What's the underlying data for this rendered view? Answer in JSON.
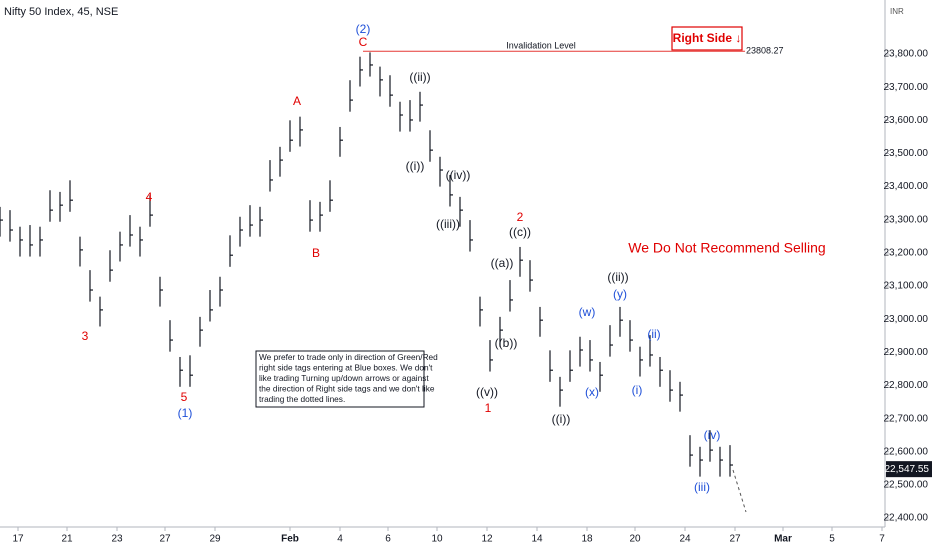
{
  "chart_data": {
    "type": "ohlc",
    "title": "Nifty 50 Index, 45, NSE",
    "currency": "INR",
    "color": "#131722",
    "xlim": [
      0,
      177
    ],
    "xticks": [
      {
        "value": 3.6,
        "label": "17"
      },
      {
        "value": 13.4,
        "label": "21"
      },
      {
        "value": 23.4,
        "label": "23"
      },
      {
        "value": 33,
        "label": "27"
      },
      {
        "value": 43,
        "label": "29"
      },
      {
        "value": 58,
        "label": "Feb"
      },
      {
        "value": 68,
        "label": "4"
      },
      {
        "value": 77.6,
        "label": "6"
      },
      {
        "value": 87.4,
        "label": "10"
      },
      {
        "value": 97.4,
        "label": "12"
      },
      {
        "value": 107.4,
        "label": "14"
      },
      {
        "value": 117.4,
        "label": "18"
      },
      {
        "value": 127,
        "label": "20"
      },
      {
        "value": 137,
        "label": "24"
      },
      {
        "value": 147,
        "label": "27"
      },
      {
        "value": 156.6,
        "label": "Mar"
      },
      {
        "value": 166.4,
        "label": "5"
      },
      {
        "value": 176.4,
        "label": "7"
      }
    ],
    "ylim": [
      22373,
      23963
    ],
    "yticks": [
      {
        "value": 22400,
        "label": "22,400.00"
      },
      {
        "value": 22500,
        "label": "22,500.00"
      },
      {
        "value": 22600,
        "label": "22,600.00"
      },
      {
        "value": 22700,
        "label": "22,700.00"
      },
      {
        "value": 22800,
        "label": "22,800.00"
      },
      {
        "value": 22900,
        "label": "22,900.00"
      },
      {
        "value": 23000,
        "label": "23,000.00"
      },
      {
        "value": 23100,
        "label": "23,100.00"
      },
      {
        "value": 23200,
        "label": "23,200.00"
      },
      {
        "value": 23300,
        "label": "23,300.00"
      },
      {
        "value": 23400,
        "label": "23,400.00"
      },
      {
        "value": 23500,
        "label": "23,500.00"
      },
      {
        "value": 23600,
        "label": "23,600.00"
      },
      {
        "value": 23700,
        "label": "23,700.00"
      },
      {
        "value": 23800,
        "label": "23,800.00"
      }
    ],
    "grid": false,
    "x": [
      0,
      2,
      4,
      6,
      8,
      10,
      12,
      14,
      16,
      18,
      20,
      22,
      24,
      26,
      28,
      30,
      32,
      34,
      36,
      38,
      40,
      42,
      44,
      46,
      48,
      50,
      52,
      54,
      56,
      58,
      60,
      62,
      64,
      66,
      68,
      70,
      72,
      74,
      76,
      78,
      80,
      82,
      84,
      86,
      88,
      90,
      92,
      94,
      96,
      98,
      100,
      102,
      104,
      106,
      108,
      110,
      112,
      114,
      116,
      118,
      120,
      122,
      124,
      126,
      128,
      130,
      132,
      134,
      136,
      138,
      140,
      142,
      144,
      146
    ],
    "high": [
      23339,
      23329,
      23279,
      23284,
      23279,
      23389,
      23384,
      23419,
      23249,
      23148,
      23068,
      23208,
      23264,
      23314,
      23279,
      23374,
      23128,
      22997,
      22886,
      22891,
      23007,
      23088,
      23128,
      23253,
      23309,
      23344,
      23339,
      23480,
      23520,
      23600,
      23611,
      23359,
      23354,
      23419,
      23580,
      23721,
      23792,
      23805,
      23762,
      23736,
      23656,
      23661,
      23686,
      23570,
      23490,
      23435,
      23369,
      23299,
      23068,
      22937,
      23007,
      23118,
      23218,
      23178,
      23037,
      22906,
      22826,
      22906,
      22947,
      22937,
      22871,
      22982,
      23037,
      22997,
      22917,
      22952,
      22886,
      22846,
      22811,
      22650,
      22615,
      22665,
      22615,
      22620
    ],
    "low": [
      23249,
      23234,
      23189,
      23189,
      23189,
      23294,
      23294,
      23324,
      23159,
      23053,
      22978,
      23113,
      23174,
      23219,
      23189,
      23279,
      23038,
      22902,
      22796,
      22796,
      22917,
      22993,
      23038,
      23158,
      23219,
      23249,
      23249,
      23385,
      23430,
      23505,
      23521,
      23264,
      23264,
      23324,
      23490,
      23626,
      23702,
      23732,
      23672,
      23641,
      23566,
      23566,
      23596,
      23475,
      23400,
      23340,
      23279,
      23204,
      22978,
      22842,
      22917,
      23023,
      23128,
      23083,
      22947,
      22811,
      22736,
      22811,
      22857,
      22842,
      22781,
      22887,
      22947,
      22902,
      22827,
      22857,
      22796,
      22751,
      22721,
      22555,
      22525,
      22570,
      22525,
      22525
    ],
    "values": [
      23299,
      23269,
      23239,
      23224,
      23239,
      23329,
      23344,
      23359,
      23209,
      23088,
      23028,
      23148,
      23224,
      23254,
      23239,
      23314,
      23088,
      22937,
      22846,
      22831,
      22967,
      23028,
      23088,
      23193,
      23269,
      23284,
      23299,
      23420,
      23480,
      23540,
      23571,
      23299,
      23314,
      23359,
      23540,
      23661,
      23752,
      23767,
      23722,
      23676,
      23616,
      23601,
      23646,
      23510,
      23450,
      23375,
      23329,
      23239,
      23028,
      22877,
      22967,
      23058,
      23178,
      23118,
      22997,
      22846,
      22786,
      22846,
      22907,
      22877,
      22831,
      22922,
      22997,
      22937,
      22877,
      22892,
      22846,
      22786,
      22771,
      22590,
      22575,
      22605,
      22575,
      22560
    ],
    "last_price": {
      "value": 22547.55,
      "label": "22,547.55"
    },
    "invalidation": {
      "value": 23808.27,
      "label": "23808.27",
      "text": "Invalidation Level",
      "color": "#e53935"
    },
    "right_side_tag": {
      "text": "Right Side ↓",
      "color": "#e00000"
    },
    "message": {
      "text": "We Do Not Recommend Selling",
      "color": "#e00000"
    },
    "note": [
      "We prefer to trade only in direction of Green/Red",
      "right side tags entering at Blue boxes. We don't",
      "like trading Turning up/down arrows or against",
      "the direction of Right side tags and we don't like",
      "trading the dotted lines."
    ],
    "annotations": [
      {
        "text": "(2)",
        "color": "#1e4fd8"
      },
      {
        "text": "C",
        "color": "#e00000"
      },
      {
        "text": "((ii))",
        "color": "#131722"
      },
      {
        "text": "A",
        "color": "#e00000"
      },
      {
        "text": "4",
        "color": "#e00000"
      },
      {
        "text": "((i))",
        "color": "#131722"
      },
      {
        "text": "((iv))",
        "color": "#131722"
      },
      {
        "text": "((iii))",
        "color": "#131722"
      },
      {
        "text": "B",
        "color": "#e00000"
      },
      {
        "text": "2",
        "color": "#e00000"
      },
      {
        "text": "((c))",
        "color": "#131722"
      },
      {
        "text": "((a))",
        "color": "#131722"
      },
      {
        "text": "((b))",
        "color": "#131722"
      },
      {
        "text": "((v))",
        "color": "#131722"
      },
      {
        "text": "1",
        "color": "#e00000"
      },
      {
        "text": "((i))",
        "color": "#131722"
      },
      {
        "text": "((ii))",
        "color": "#131722"
      },
      {
        "text": "(y)",
        "color": "#1e4fd8"
      },
      {
        "text": "(w)",
        "color": "#1e4fd8"
      },
      {
        "text": "(x)",
        "color": "#1e4fd8"
      },
      {
        "text": "(i)",
        "color": "#1e4fd8"
      },
      {
        "text": "(ii)",
        "color": "#1e4fd8"
      },
      {
        "text": "(iv)",
        "color": "#1e4fd8"
      },
      {
        "text": "(iii)",
        "color": "#1e4fd8"
      },
      {
        "text": "3",
        "color": "#e00000"
      },
      {
        "text": "5",
        "color": "#e00000"
      },
      {
        "text": "(1)",
        "color": "#1e4fd8"
      }
    ]
  }
}
